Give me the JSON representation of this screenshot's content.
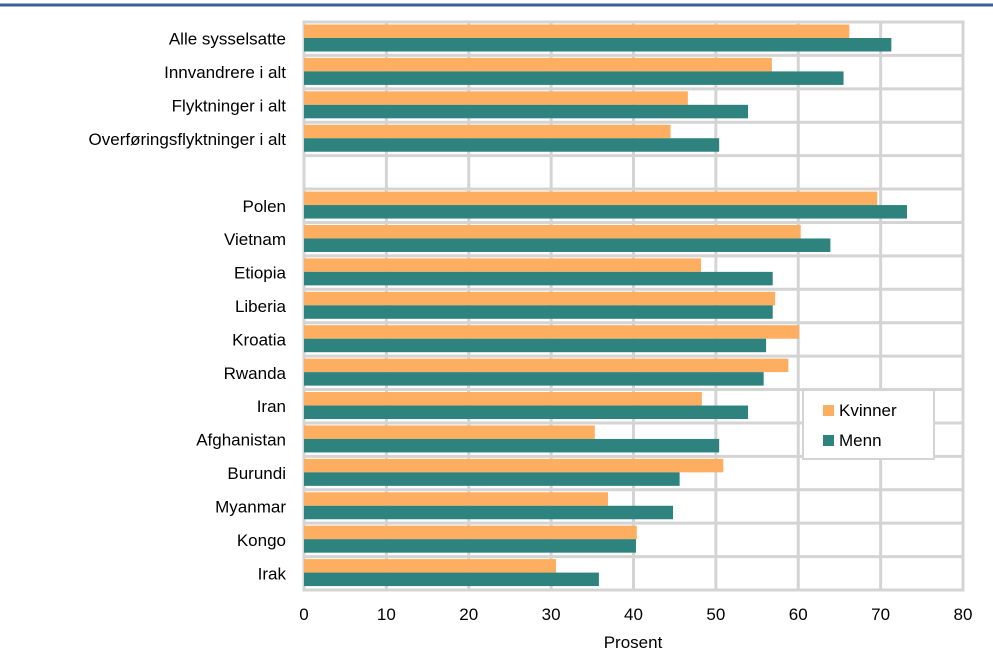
{
  "colors": {
    "kvinner": "#FDAE61",
    "menn": "#2E837F",
    "grid": "#D4D4D4",
    "plot_border": "#D4D4D4",
    "top_rule": "#3B5F9A"
  },
  "chart_data": {
    "type": "bar",
    "orientation": "horizontal",
    "title": "",
    "xlabel": "Prosent",
    "ylabel": "",
    "xlim": [
      0,
      80
    ],
    "xticks": [
      0,
      10,
      20,
      30,
      40,
      50,
      60,
      70,
      80
    ],
    "grid": true,
    "legend_position": "right-middle",
    "categories": [
      "Alle sysselsatte",
      "Innvandrere i alt",
      "Flyktninger i alt",
      "Overføringsflyktninger i alt",
      "",
      "Polen",
      "Vietnam",
      "Etiopia",
      "Liberia",
      "Kroatia",
      "Rwanda",
      "Iran",
      "Afghanistan",
      "Burundi",
      "Myanmar",
      "Kongo",
      "Irak"
    ],
    "series": [
      {
        "name": "Kvinner",
        "values": [
          66.2,
          56.8,
          46.6,
          44.5,
          null,
          69.6,
          60.3,
          48.2,
          57.2,
          60.1,
          58.8,
          48.3,
          35.3,
          50.9,
          36.9,
          40.4,
          30.6
        ]
      },
      {
        "name": "Menn",
        "values": [
          71.3,
          65.5,
          53.9,
          50.4,
          null,
          73.2,
          63.9,
          56.9,
          56.9,
          56.1,
          55.8,
          53.9,
          50.4,
          45.6,
          44.8,
          40.3,
          35.8
        ]
      }
    ]
  }
}
